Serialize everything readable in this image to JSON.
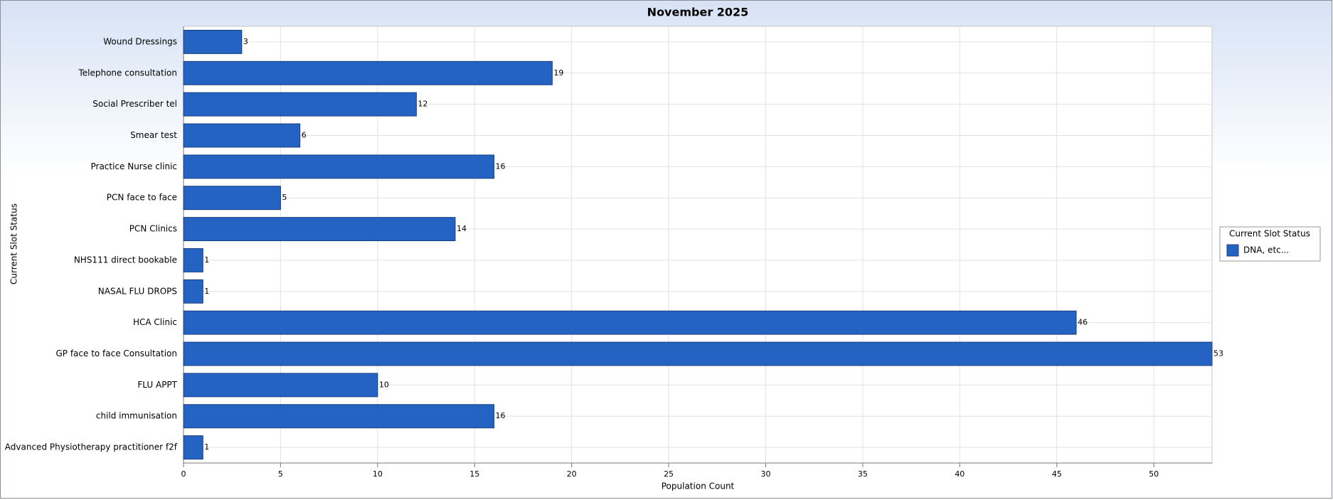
{
  "chart_data": {
    "type": "bar",
    "orientation": "horizontal",
    "title": "November 2025",
    "x_label": "Population Count",
    "y_label": "Current Slot Status",
    "legend_title": "Current Slot Status",
    "categories": [
      "Wound Dressings",
      "Telephone consultation",
      "Social Prescriber tel",
      "Smear test",
      "Practice Nurse clinic",
      "PCN face to face",
      "PCN Clinics",
      "NHS111 direct bookable",
      "NASAL FLU DROPS",
      "HCA Clinic",
      "GP face to face Consultation",
      "FLU APPT",
      "child immunisation",
      "Advanced Physiotherapy practitioner f2f"
    ],
    "series": [
      {
        "name": "DNA, etc...",
        "color": "#2563c2",
        "values": [
          3,
          19,
          12,
          6,
          16,
          5,
          14,
          1,
          1,
          46,
          53,
          10,
          16,
          1
        ]
      }
    ],
    "xlim": [
      0,
      53
    ],
    "xticks": [
      0,
      5,
      10,
      15,
      20,
      25,
      30,
      35,
      40,
      45,
      50
    ],
    "grid": true,
    "legend": "right"
  }
}
